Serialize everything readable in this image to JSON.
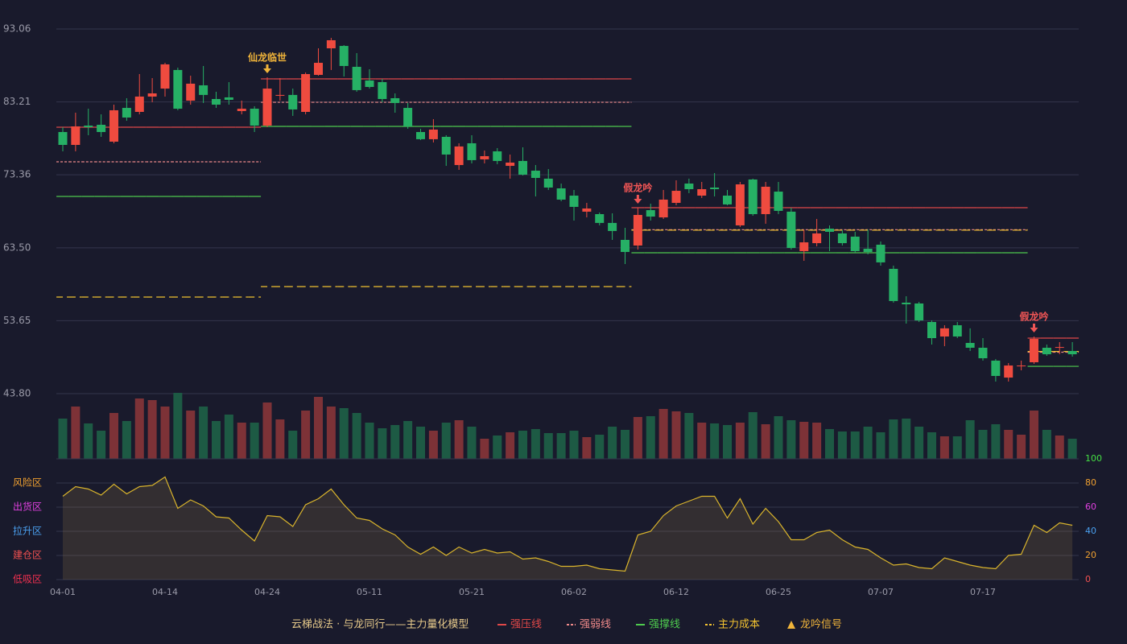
{
  "chart_data": [
    {
      "type": "candlestick",
      "title": "云梯战法 · 与龙同行——主力量化模型",
      "up_color": "#ef4b3f",
      "down_color": "#26b065",
      "ylim": [
        43.8,
        93.06
      ],
      "yticks": [
        {
          "value": 43.8,
          "label": "43.80"
        },
        53.65,
        {
          "value": 63.5,
          "label": "63.50"
        },
        73.36,
        83.21,
        93.06
      ],
      "grid": true,
      "categories": [
        "04-01",
        null,
        null,
        null,
        null,
        null,
        null,
        null,
        "04-14",
        null,
        null,
        null,
        null,
        null,
        null,
        null,
        "04-24",
        null,
        null,
        null,
        null,
        null,
        null,
        null,
        "05-11",
        null,
        null,
        null,
        null,
        null,
        null,
        null,
        "05-21",
        null,
        null,
        null,
        null,
        null,
        null,
        null,
        "06-02",
        null,
        null,
        null,
        null,
        null,
        null,
        null,
        "06-12",
        null,
        null,
        null,
        null,
        null,
        null,
        null,
        "06-25",
        null,
        null,
        null,
        null,
        null,
        null,
        null,
        "07-07",
        null,
        null,
        null,
        null,
        null,
        null,
        null,
        "07-17",
        null,
        null,
        null,
        null,
        null,
        null,
        null
      ],
      "ohlc": [
        [
          79.14,
          79.79,
          76.53,
          77.4
        ],
        [
          77.4,
          81.75,
          76.53,
          79.9
        ],
        [
          80.01,
          82.29,
          78.71,
          79.79
        ],
        [
          80.12,
          81.53,
          78.49,
          79.14
        ],
        [
          77.84,
          82.84,
          77.62,
          82.08
        ],
        [
          82.4,
          83.71,
          80.66,
          81.1
        ],
        [
          81.86,
          86.97,
          81.53,
          83.93
        ],
        [
          83.93,
          86.43,
          83.16,
          84.36
        ],
        [
          85.01,
          88.49,
          83.93,
          88.28
        ],
        [
          87.52,
          87.84,
          82.08,
          82.29
        ],
        [
          83.38,
          86.75,
          82.84,
          85.67
        ],
        [
          85.45,
          88.06,
          83.06,
          84.15
        ],
        [
          83.6,
          84.58,
          82.4,
          82.84
        ],
        [
          83.82,
          85.88,
          82.84,
          83.49
        ],
        [
          81.97,
          83.38,
          81.53,
          82.29
        ],
        [
          82.29,
          82.62,
          79.14,
          80.01
        ],
        [
          80.01,
          86.53,
          79.79,
          85.01
        ],
        [
          84.04,
          86.43,
          83.38,
          84.15
        ],
        [
          84.15,
          85.01,
          81.32,
          82.19
        ],
        [
          81.86,
          87.19,
          81.53,
          86.97
        ],
        [
          86.86,
          90.45,
          86.75,
          88.49
        ],
        [
          90.45,
          91.86,
          87.52,
          91.54
        ],
        [
          90.77,
          90.88,
          86.64,
          88.06
        ],
        [
          87.95,
          89.8,
          84.58,
          84.8
        ],
        [
          86.1,
          87.62,
          85.01,
          85.23
        ],
        [
          85.88,
          86.32,
          83.16,
          83.6
        ],
        [
          83.71,
          84.36,
          81.75,
          83.06
        ],
        [
          82.4,
          83.06,
          79.58,
          79.9
        ],
        [
          79.14,
          79.58,
          78.06,
          78.17
        ],
        [
          78.17,
          80.88,
          77.73,
          79.47
        ],
        [
          78.49,
          78.71,
          74.57,
          76.1
        ],
        [
          74.68,
          77.62,
          74.03,
          77.19
        ],
        [
          77.62,
          78.71,
          74.9,
          75.34
        ],
        [
          75.45,
          76.64,
          74.9,
          75.88
        ],
        [
          76.53,
          76.97,
          74.79,
          75.23
        ],
        [
          74.57,
          76.1,
          72.84,
          75.01
        ],
        [
          75.23,
          77.08,
          73.27,
          73.38
        ],
        [
          73.92,
          74.68,
          70.44,
          72.94
        ],
        [
          72.84,
          74.14,
          71.31,
          71.64
        ],
        [
          71.53,
          72.18,
          69.79,
          70.01
        ],
        [
          70.55,
          71.31,
          67.18,
          69.03
        ],
        [
          68.38,
          69.57,
          67.61,
          68.81
        ],
        [
          68.05,
          68.27,
          66.53,
          66.86
        ],
        [
          66.86,
          68.16,
          64.57,
          65.77
        ],
        [
          64.57,
          66.2,
          61.31,
          62.94
        ],
        [
          63.81,
          68.92,
          63.26,
          67.94
        ],
        [
          68.59,
          69.46,
          67.18,
          67.72
        ],
        [
          67.61,
          71.31,
          67.4,
          70.01
        ],
        [
          69.57,
          72.62,
          69.25,
          71.2
        ],
        [
          72.18,
          72.84,
          70.88,
          71.42
        ],
        [
          70.55,
          72.4,
          70.23,
          71.42
        ],
        [
          71.64,
          73.6,
          70.44,
          71.42
        ],
        [
          70.55,
          71.31,
          69.25,
          69.36
        ],
        [
          66.53,
          72.4,
          66.31,
          72.07
        ],
        [
          72.73,
          72.84,
          67.83,
          68.05
        ],
        [
          68.05,
          72.4,
          66.75,
          71.75
        ],
        [
          71.09,
          72.4,
          68.05,
          68.49
        ],
        [
          68.38,
          68.92,
          63.26,
          63.48
        ],
        [
          63.05,
          65.98,
          61.74,
          64.24
        ],
        [
          64.13,
          67.4,
          63.7,
          65.44
        ],
        [
          66.09,
          66.53,
          63.05,
          65.66
        ],
        [
          65.44,
          65.88,
          63.81,
          64.13
        ],
        [
          65.01,
          65.66,
          62.83,
          63.05
        ],
        [
          63.37,
          65.98,
          62.61,
          62.94
        ],
        [
          63.92,
          64.35,
          61.09,
          61.53
        ],
        [
          60.66,
          61.09,
          56.09,
          56.31
        ],
        [
          56.09,
          56.96,
          53.26,
          55.87
        ],
        [
          55.98,
          56.2,
          53.48,
          53.69
        ],
        [
          53.48,
          53.7,
          50.43,
          51.3
        ],
        [
          51.52,
          53.04,
          50.21,
          52.62
        ],
        [
          53.04,
          53.48,
          51.3,
          51.52
        ],
        [
          50.65,
          52.62,
          49.56,
          50.0
        ],
        [
          50.0,
          51.3,
          48.26,
          48.58
        ],
        [
          48.26,
          48.47,
          45.43,
          46.19
        ],
        [
          45.97,
          47.93,
          45.43,
          47.6
        ],
        [
          47.49,
          48.26,
          46.95,
          47.6
        ],
        [
          48.04,
          51.52,
          47.82,
          51.19
        ],
        [
          50.0,
          50.43,
          48.91,
          49.12
        ],
        [
          50.0,
          50.76,
          49.12,
          50.1
        ],
        [
          49.56,
          50.76,
          48.8,
          49.12
        ]
      ],
      "series": [
        {
          "name": "强压线",
          "color": "#e04848",
          "style": "solid",
          "values": [
            79.79,
            79.79,
            79.79,
            79.79,
            79.79,
            79.79,
            79.79,
            79.79,
            79.79,
            79.79,
            79.79,
            79.79,
            79.79,
            79.79,
            79.79,
            79.79,
            86.32,
            86.32,
            86.32,
            86.32,
            86.32,
            86.32,
            86.32,
            86.32,
            86.32,
            86.32,
            86.32,
            86.32,
            86.32,
            86.32,
            86.32,
            86.32,
            86.32,
            86.32,
            86.32,
            86.32,
            86.32,
            86.32,
            86.32,
            86.32,
            86.32,
            86.32,
            86.32,
            86.32,
            86.32,
            68.92,
            68.92,
            68.92,
            68.92,
            68.92,
            68.92,
            68.92,
            68.92,
            68.92,
            68.92,
            68.92,
            68.92,
            68.92,
            68.92,
            68.92,
            68.92,
            68.92,
            68.92,
            68.92,
            68.92,
            68.92,
            68.92,
            68.92,
            68.92,
            68.92,
            68.92,
            68.92,
            68.92,
            68.92,
            68.92,
            68.92,
            51.3,
            51.3,
            51.3,
            51.3
          ]
        },
        {
          "name": "强弱线",
          "color": "#f08a8a",
          "style": "dashed",
          "values": [
            75.12,
            75.12,
            75.12,
            75.12,
            75.12,
            75.12,
            75.12,
            75.12,
            75.12,
            75.12,
            75.12,
            75.12,
            75.12,
            75.12,
            75.12,
            75.12,
            83.16,
            83.16,
            83.16,
            83.16,
            83.16,
            83.16,
            83.16,
            83.16,
            83.16,
            83.16,
            83.16,
            83.16,
            83.16,
            83.16,
            83.16,
            83.16,
            83.16,
            83.16,
            83.16,
            83.16,
            83.16,
            83.16,
            83.16,
            83.16,
            83.16,
            83.16,
            83.16,
            83.16,
            83.16,
            65.95,
            65.95,
            65.95,
            65.95,
            65.95,
            65.95,
            65.95,
            65.95,
            65.95,
            65.95,
            65.95,
            65.95,
            65.95,
            65.95,
            65.95,
            65.95,
            65.95,
            65.95,
            65.95,
            65.95,
            65.95,
            65.95,
            65.95,
            65.95,
            65.95,
            65.95,
            65.95,
            65.95,
            65.95,
            65.95,
            65.95,
            49.4,
            49.4,
            49.4,
            49.4
          ]
        },
        {
          "name": "强撑线",
          "color": "#4ecb4e",
          "style": "solid",
          "values": [
            70.44,
            70.44,
            70.44,
            70.44,
            70.44,
            70.44,
            70.44,
            70.44,
            70.44,
            70.44,
            70.44,
            70.44,
            70.44,
            70.44,
            70.44,
            70.44,
            79.9,
            79.9,
            79.9,
            79.9,
            79.9,
            79.9,
            79.9,
            79.9,
            79.9,
            79.9,
            79.9,
            79.9,
            79.9,
            79.9,
            79.9,
            79.9,
            79.9,
            79.9,
            79.9,
            79.9,
            79.9,
            79.9,
            79.9,
            79.9,
            79.9,
            79.9,
            79.9,
            79.9,
            79.9,
            62.83,
            62.83,
            62.83,
            62.83,
            62.83,
            62.83,
            62.83,
            62.83,
            62.83,
            62.83,
            62.83,
            62.83,
            62.83,
            62.83,
            62.83,
            62.83,
            62.83,
            62.83,
            62.83,
            62.83,
            62.83,
            62.83,
            62.83,
            62.83,
            62.83,
            62.83,
            62.83,
            62.83,
            62.83,
            62.83,
            62.83,
            47.49,
            47.49,
            47.49,
            47.49
          ]
        },
        {
          "name": "主力成本",
          "color": "#f2c230",
          "style": "dashed",
          "values": [
            56.85,
            56.85,
            56.85,
            56.85,
            56.85,
            56.85,
            56.85,
            56.85,
            56.85,
            56.85,
            56.85,
            56.85,
            56.85,
            56.85,
            56.85,
            56.85,
            58.26,
            58.26,
            58.26,
            58.26,
            58.26,
            58.26,
            58.26,
            58.26,
            58.26,
            58.26,
            58.26,
            58.26,
            58.26,
            58.26,
            58.26,
            58.26,
            58.26,
            58.26,
            58.26,
            58.26,
            58.26,
            58.26,
            58.26,
            58.26,
            58.26,
            58.26,
            58.26,
            58.26,
            58.26,
            65.88,
            65.88,
            65.88,
            65.88,
            65.88,
            65.88,
            65.88,
            65.88,
            65.88,
            65.88,
            65.88,
            65.88,
            65.88,
            65.88,
            65.88,
            65.88,
            65.88,
            65.88,
            65.88,
            65.88,
            65.88,
            65.88,
            65.88,
            65.88,
            65.88,
            65.88,
            65.88,
            65.88,
            65.88,
            65.88,
            65.88,
            49.5,
            49.5,
            49.5,
            49.5
          ]
        }
      ],
      "signal_name": "龙吟信号",
      "signal_color": "#f0b43a",
      "signals": [
        {
          "at": 16,
          "label": "仙龙临世",
          "color": "#f0b43a"
        },
        {
          "at": 45,
          "label": "假龙吟",
          "color": "#f05555"
        },
        {
          "at": 76,
          "label": "假龙吟",
          "color": "#f05555"
        }
      ]
    },
    {
      "type": "bar",
      "up_color": "#7d3237",
      "down_color": "#1d5a44",
      "values": [
        50,
        65,
        44,
        35,
        57,
        47,
        75,
        73,
        65,
        82,
        60,
        65,
        47,
        55,
        45,
        45,
        70,
        49,
        35,
        60,
        77,
        65,
        63,
        57,
        45,
        38,
        42,
        47,
        40,
        35,
        45,
        48,
        40,
        25,
        29,
        33,
        35,
        37,
        32,
        32,
        35,
        27,
        30,
        40,
        36,
        52,
        53,
        62,
        59,
        57,
        45,
        44,
        42,
        45,
        58,
        43,
        53,
        48,
        46,
        45,
        37,
        34,
        34,
        40,
        33,
        49,
        50,
        40,
        33,
        28,
        28,
        48,
        36,
        43,
        36,
        30,
        60,
        36,
        29,
        25
      ]
    },
    {
      "type": "area",
      "color": "#d9b42c",
      "fill": "rgba(170,140,70,0.18)",
      "ylim": [
        0,
        100
      ],
      "yticks": [
        0,
        20,
        40,
        60,
        80,
        100
      ],
      "tick_colors": [
        "#f05050",
        "#f0a030",
        "#4aa0f0",
        "#e040e0",
        "#f0a030",
        "#44e044"
      ],
      "zones": [
        {
          "label": "风险区",
          "value": 80,
          "color": "#f0a030"
        },
        {
          "label": "出货区",
          "value": 60,
          "color": "#e040e0"
        },
        {
          "label": "拉升区",
          "value": 40,
          "color": "#4aa0f0"
        },
        {
          "label": "建仓区",
          "value": 20,
          "color": "#f05050"
        },
        {
          "label": "低吸区",
          "value": 0,
          "color": "#f03050"
        }
      ],
      "values": [
        69,
        77,
        75,
        70,
        79,
        71,
        77,
        78,
        85,
        59,
        66,
        61,
        52,
        51,
        41,
        32,
        53,
        52,
        44,
        62,
        67,
        75,
        62,
        51,
        49,
        42,
        37,
        27,
        21,
        27,
        20,
        27,
        22,
        25,
        22,
        23,
        17,
        18,
        15,
        11,
        11,
        12,
        9,
        8,
        7,
        37,
        40,
        53,
        61,
        65,
        69,
        69,
        51,
        67,
        46,
        59,
        48,
        33,
        33,
        39,
        41,
        33,
        27,
        25,
        18,
        12,
        13,
        10,
        9,
        18,
        15,
        12,
        10,
        9,
        20,
        21,
        45,
        39,
        47,
        45
      ]
    }
  ]
}
